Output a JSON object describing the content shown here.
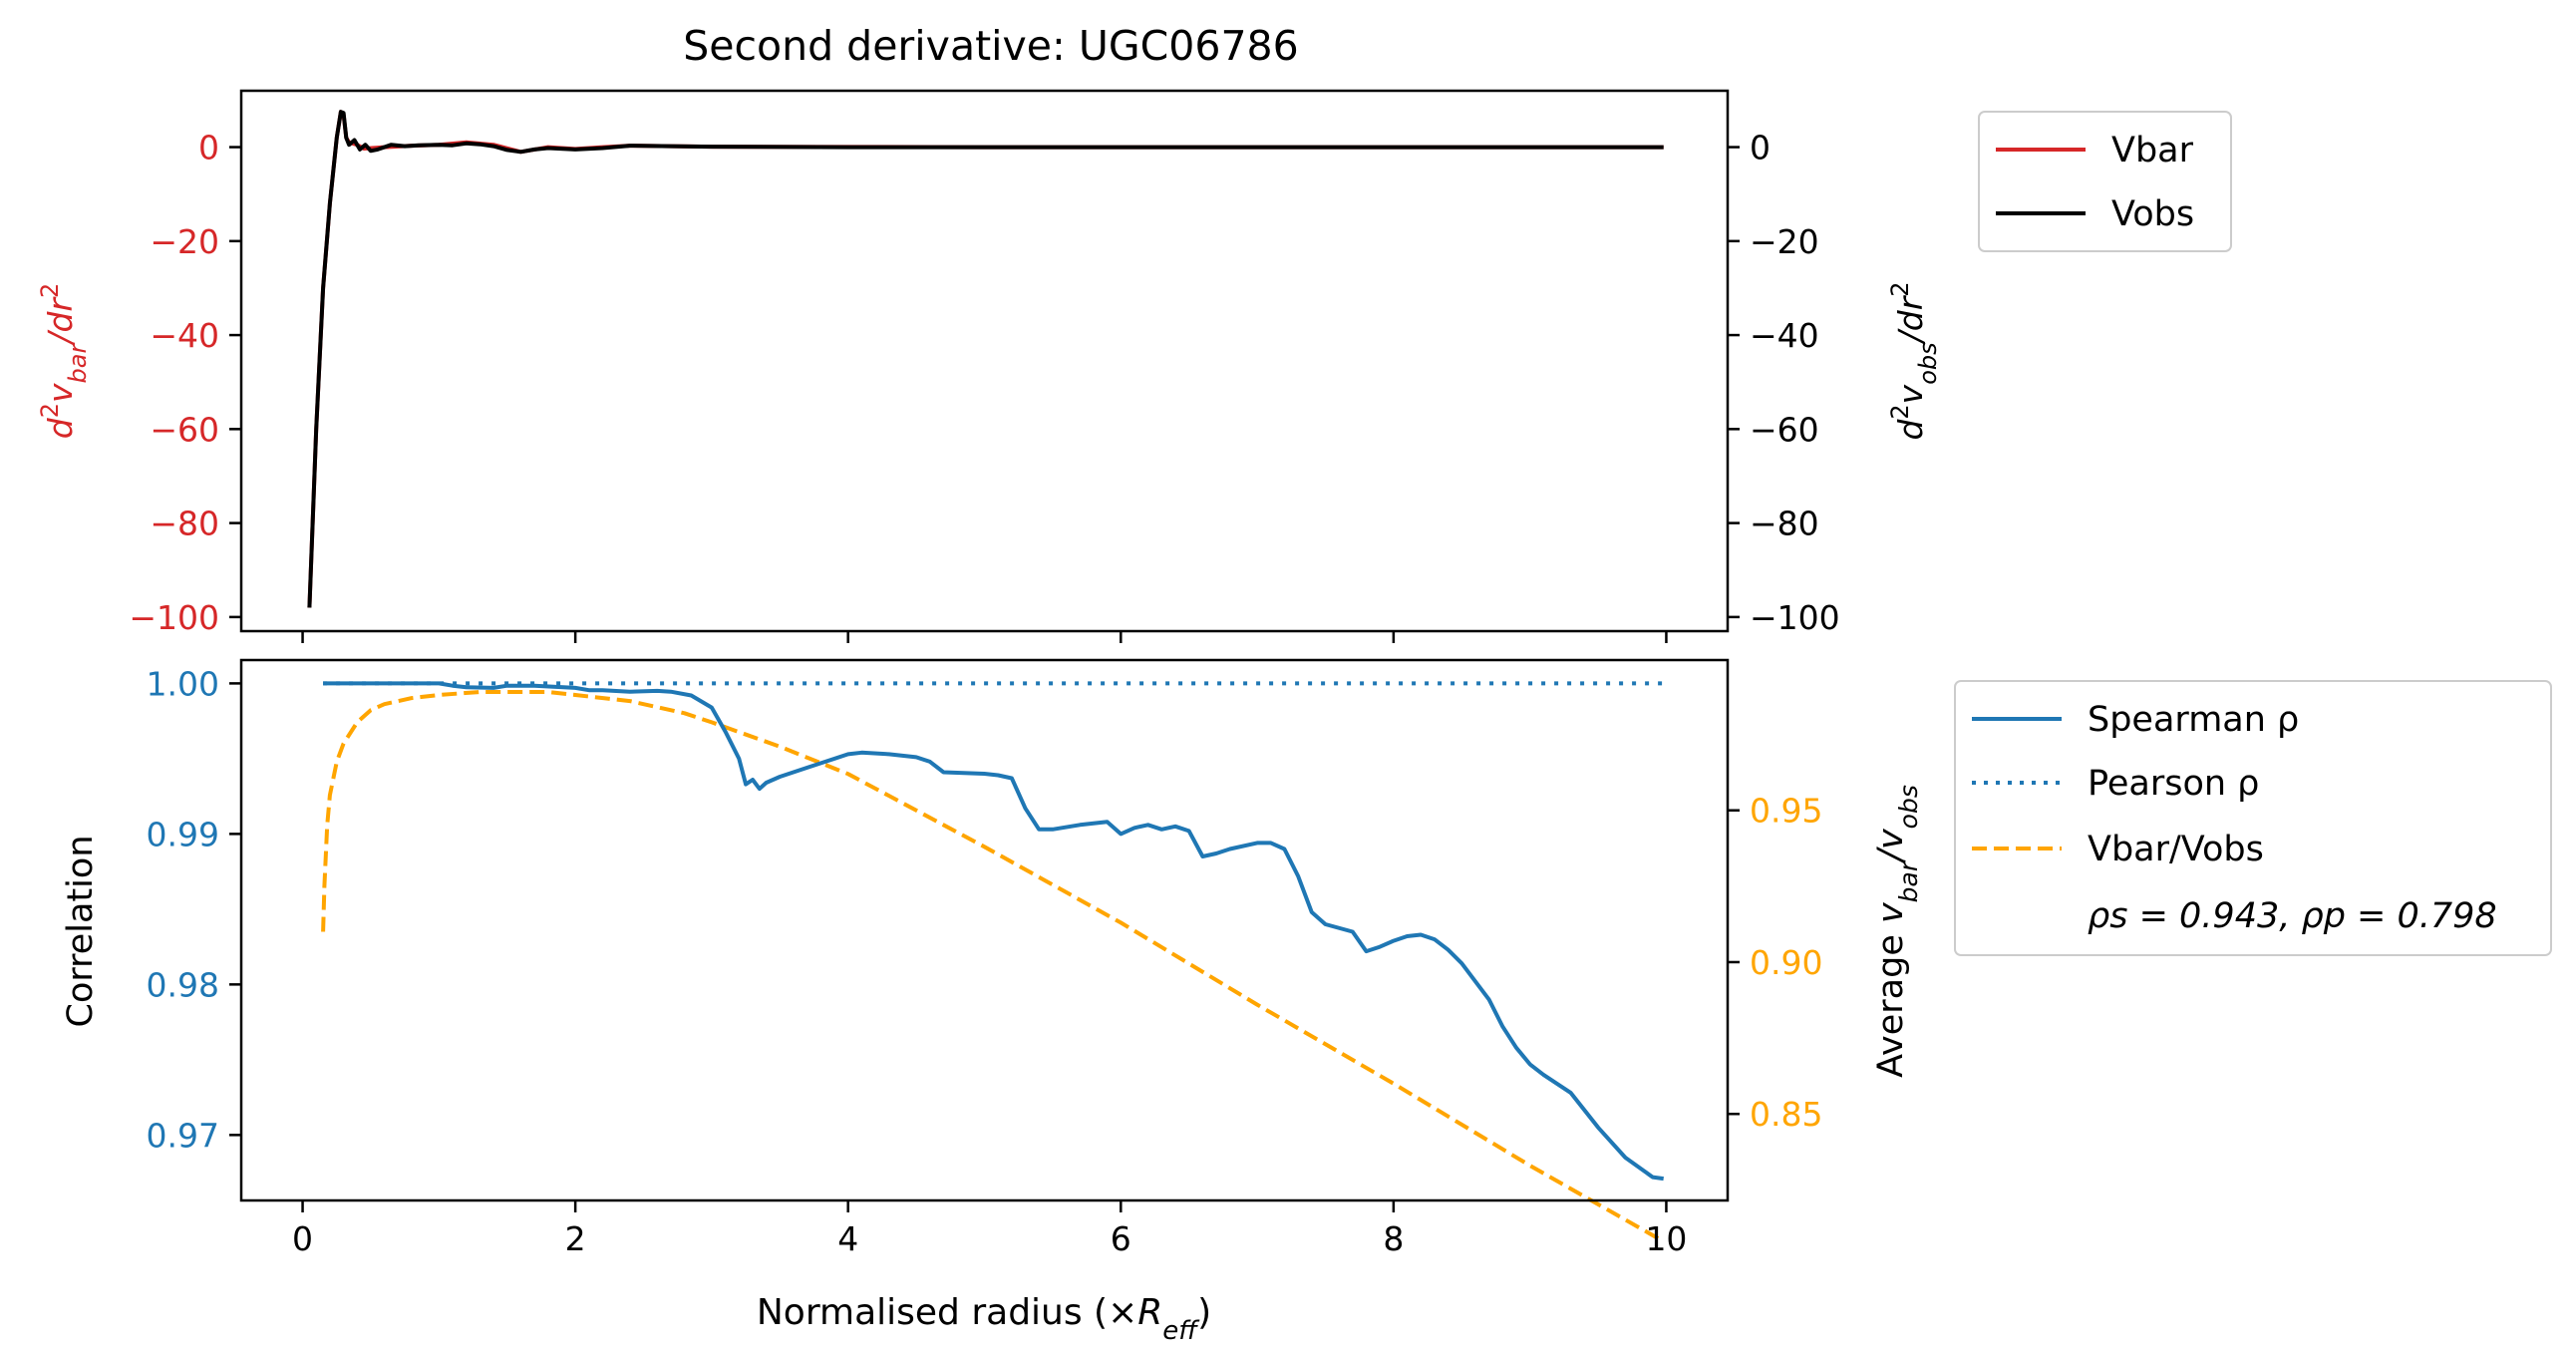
{
  "figure": {
    "title": "Second derivative: UGC06786",
    "xlabel_main": "Normalised radius (×",
    "xlabel_sym": "R",
    "xlabel_sub": "eff",
    "xlabel_close": ")"
  },
  "colors": {
    "vbar": "#d62728",
    "vobs": "#000000",
    "spearman": "#1f77b4",
    "pearson": "#1f77b4",
    "ratio": "#ffa500",
    "axis": "#000000"
  },
  "chart_data": [
    {
      "type": "line",
      "panel": "top",
      "title": "Second derivative: UGC06786",
      "xlim": [
        -0.45,
        10.45
      ],
      "ylim_left": [
        -103,
        12
      ],
      "ylim_right": [
        -103,
        12
      ],
      "xticks": [
        0,
        2,
        4,
        6,
        8,
        10
      ],
      "yticks_left": [
        0,
        -20,
        -40,
        -60,
        -80,
        -100
      ],
      "yticks_right": [
        0,
        -20,
        -40,
        -60,
        -80,
        -100
      ],
      "ylabel_left": "d²v_bar/dr²",
      "ylabel_right": "d²v_obs/dr²",
      "ylabel_left_parts": {
        "a": "d",
        "sup1": "2",
        "b": "v",
        "sub": "bar",
        "c": "/dr",
        "sup2": "2"
      },
      "ylabel_right_parts": {
        "a": "d",
        "sup1": "2",
        "b": "v",
        "sub": "obs",
        "c": "/dr",
        "sup2": "2"
      },
      "legend": {
        "placement": "outside upper right",
        "entries": [
          "Vbar",
          "Vobs"
        ]
      },
      "series": [
        {
          "name": "Vbar",
          "axis": "left",
          "x": [
            0.05,
            0.1,
            0.15,
            0.2,
            0.25,
            0.28,
            0.3,
            0.32,
            0.34,
            0.4,
            0.45,
            0.6,
            0.8,
            1.0,
            1.2,
            1.4,
            1.6,
            1.8,
            2.0,
            2.2,
            2.4,
            3.0,
            5.0,
            8.0,
            9.98
          ],
          "y": [
            -98,
            -60,
            -30,
            -12,
            2,
            7.5,
            7,
            2,
            1,
            0.5,
            -0.3,
            0,
            0.3,
            0.5,
            1,
            0.5,
            -1,
            0,
            -0.4,
            0,
            0.3,
            0.1,
            0,
            0,
            0
          ]
        },
        {
          "name": "Vobs",
          "axis": "right",
          "x": [
            0.05,
            0.1,
            0.15,
            0.2,
            0.25,
            0.28,
            0.3,
            0.32,
            0.34,
            0.38,
            0.42,
            0.46,
            0.5,
            0.55,
            0.65,
            0.75,
            0.85,
            1.0,
            1.1,
            1.2,
            1.3,
            1.4,
            1.5,
            1.6,
            1.7,
            1.8,
            2.0,
            2.2,
            2.4,
            2.7,
            3.0,
            4.0,
            6.0,
            8.0,
            9.98
          ],
          "y": [
            -98,
            -60,
            -30,
            -12,
            2,
            7.5,
            7.3,
            2,
            0.5,
            1.5,
            -0.5,
            0.5,
            -0.8,
            -0.5,
            0.5,
            0.2,
            0.4,
            0.5,
            0.4,
            0.8,
            0.6,
            0.2,
            -0.6,
            -1,
            -0.5,
            -0.2,
            -0.5,
            -0.2,
            0.3,
            0.2,
            0.1,
            0,
            0,
            0,
            0
          ]
        }
      ]
    },
    {
      "type": "line",
      "panel": "bottom",
      "xlim": [
        -0.45,
        10.45
      ],
      "ylim_left": [
        0.96565,
        1.00155
      ],
      "ylim_right": [
        0.8215,
        0.9995
      ],
      "xticks": [
        0,
        2,
        4,
        6,
        8,
        10
      ],
      "yticks_left": [
        "1.00",
        "0.99",
        "0.98",
        "0.97"
      ],
      "yticks_left_values": [
        1.0,
        0.99,
        0.98,
        0.97
      ],
      "yticks_right": [
        "0.95",
        "0.90",
        "0.85"
      ],
      "yticks_right_values": [
        0.95,
        0.9,
        0.85
      ],
      "ylabel_left": "Correlation",
      "ylabel_right": "Average v_bar/v_obs",
      "ylabel_right_parts": {
        "a": "Average ",
        "b": "v",
        "sub1": "bar",
        "c": "/v",
        "sub2": "obs"
      },
      "legend": {
        "placement": "outside upper right",
        "entries": [
          "Spearman ρ",
          "Pearson ρ",
          "Vbar/Vobs"
        ],
        "note": "ρs = 0.943, ρp = 0.798"
      },
      "series": [
        {
          "name": "Spearman ρ",
          "axis": "left",
          "style": "solid",
          "x": [
            0.15,
            0.9,
            1.0,
            1.1,
            1.2,
            1.4,
            1.5,
            1.7,
            2.0,
            2.1,
            2.2,
            2.4,
            2.6,
            2.7,
            2.85,
            3.0,
            3.1,
            3.2,
            3.25,
            3.3,
            3.35,
            3.4,
            3.5,
            3.7,
            3.8,
            4.0,
            4.1,
            4.3,
            4.5,
            4.6,
            4.7,
            5.0,
            5.1,
            5.2,
            5.3,
            5.4,
            5.5,
            5.7,
            5.9,
            6.0,
            6.1,
            6.2,
            6.3,
            6.4,
            6.5,
            6.6,
            6.7,
            6.8,
            7.0,
            7.1,
            7.2,
            7.3,
            7.4,
            7.5,
            7.7,
            7.8,
            7.9,
            8.0,
            8.1,
            8.2,
            8.3,
            8.4,
            8.5,
            8.7,
            8.8,
            8.9,
            9.0,
            9.1,
            9.3,
            9.5,
            9.7,
            9.9,
            9.98
          ],
          "y": [
            1.0,
            1.0,
            1.0,
            0.99985,
            0.99975,
            0.9997,
            0.99985,
            0.99985,
            0.9997,
            0.99955,
            0.99955,
            0.99945,
            0.9995,
            0.99945,
            0.9992,
            0.9984,
            0.9968,
            0.995,
            0.9933,
            0.9936,
            0.993,
            0.9934,
            0.9938,
            0.9944,
            0.9947,
            0.9953,
            0.9954,
            0.9953,
            0.9951,
            0.9948,
            0.9941,
            0.994,
            0.9939,
            0.9937,
            0.9917,
            0.9903,
            0.9903,
            0.9906,
            0.9908,
            0.99,
            0.9904,
            0.9906,
            0.9903,
            0.9905,
            0.9902,
            0.9885,
            0.9887,
            0.989,
            0.9894,
            0.9894,
            0.989,
            0.9872,
            0.9848,
            0.984,
            0.9835,
            0.9822,
            0.9825,
            0.9829,
            0.9832,
            0.9833,
            0.983,
            0.9823,
            0.9814,
            0.979,
            0.9772,
            0.9758,
            0.9747,
            0.974,
            0.9728,
            0.9705,
            0.9685,
            0.9672,
            0.9671
          ]
        },
        {
          "name": "Pearson ρ",
          "axis": "left",
          "style": "dotted",
          "x": [
            0.15,
            9.98
          ],
          "y": [
            1.0,
            1.0
          ]
        },
        {
          "name": "Vbar/Vobs",
          "axis": "right",
          "style": "dashed",
          "x": [
            0.15,
            0.16,
            0.18,
            0.2,
            0.25,
            0.3,
            0.4,
            0.5,
            0.6,
            0.8,
            1.0,
            1.3,
            1.6,
            1.8,
            2.0,
            2.4,
            2.8,
            3.0,
            3.5,
            4.0,
            5.0,
            6.0,
            7.0,
            8.0,
            9.0,
            9.98
          ],
          "y": [
            0.91,
            0.925,
            0.945,
            0.955,
            0.966,
            0.972,
            0.979,
            0.983,
            0.985,
            0.987,
            0.988,
            0.989,
            0.989,
            0.989,
            0.988,
            0.986,
            0.982,
            0.979,
            0.971,
            0.962,
            0.938,
            0.913,
            0.886,
            0.86,
            0.833,
            0.808
          ]
        }
      ]
    }
  ]
}
